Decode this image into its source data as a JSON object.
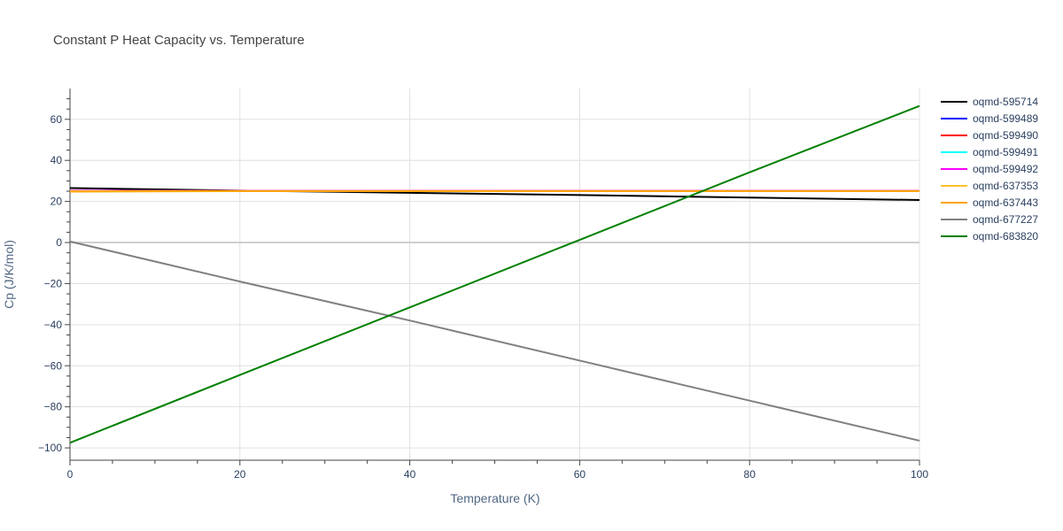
{
  "chart_data": {
    "type": "line",
    "title": "Constant P Heat Capacity vs. Temperature",
    "xlabel": "Temperature (K)",
    "ylabel": "Cp (J/K/mol)",
    "xlim": [
      0,
      100
    ],
    "ylim": [
      -106,
      75
    ],
    "x_ticks": [
      0,
      20,
      40,
      60,
      80,
      100
    ],
    "y_ticks": [
      -100,
      -80,
      -60,
      -40,
      -20,
      0,
      20,
      40,
      60
    ],
    "grid": true,
    "legend_position": "right",
    "series": [
      {
        "name": "oqmd-595714",
        "color": "#000000",
        "x": [
          0,
          20,
          40,
          60,
          80,
          100
        ],
        "y": [
          26.5,
          25.3,
          24.2,
          23.1,
          21.9,
          20.7
        ]
      },
      {
        "name": "oqmd-599489",
        "color": "#0000ff",
        "x": [
          0,
          20,
          40,
          60,
          80,
          100
        ],
        "y": [
          25.2,
          25.2,
          25.2,
          25.2,
          25.2,
          25.2
        ]
      },
      {
        "name": "oqmd-599490",
        "color": "#ff0000",
        "x": [
          0,
          20,
          40,
          60,
          80,
          100
        ],
        "y": [
          25.2,
          25.2,
          25.2,
          25.2,
          25.2,
          25.2
        ]
      },
      {
        "name": "oqmd-599491",
        "color": "#00ffff",
        "x": [
          0,
          20,
          40,
          60,
          80,
          100
        ],
        "y": [
          25.2,
          25.2,
          25.2,
          25.2,
          25.2,
          25.2
        ]
      },
      {
        "name": "oqmd-599492",
        "color": "#ff00ff",
        "x": [
          0,
          20,
          40,
          60,
          80,
          100
        ],
        "y": [
          25.2,
          25.2,
          25.2,
          25.2,
          25.2,
          25.2
        ]
      },
      {
        "name": "oqmd-637353",
        "color": "#fbc02d",
        "x": [
          0,
          20,
          40,
          60,
          80,
          100
        ],
        "y": [
          25.0,
          25.1,
          25.1,
          25.1,
          25.1,
          25.1
        ]
      },
      {
        "name": "oqmd-637443",
        "color": "#ffa500",
        "x": [
          0,
          20,
          40,
          60,
          80,
          100
        ],
        "y": [
          24.8,
          25.0,
          25.0,
          25.0,
          25.0,
          25.0
        ]
      },
      {
        "name": "oqmd-677227",
        "color": "#808080",
        "x": [
          0,
          20,
          40,
          60,
          80,
          100
        ],
        "y": [
          0.5,
          -19,
          -38,
          -57.5,
          -77,
          -96.5
        ]
      },
      {
        "name": "oqmd-683820",
        "color": "#008000",
        "x": [
          0,
          20,
          40,
          60,
          80,
          100
        ],
        "y": [
          -97.5,
          -64.5,
          -31.6,
          1.3,
          34.2,
          66.5
        ]
      }
    ]
  }
}
